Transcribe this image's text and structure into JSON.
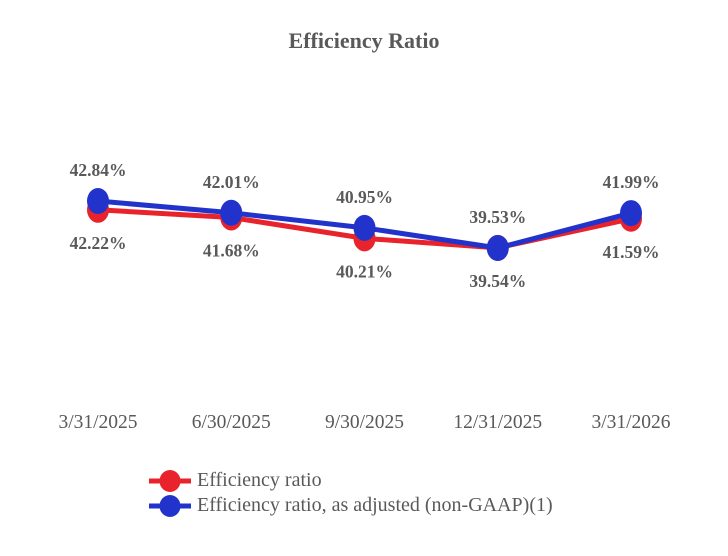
{
  "chart_data": {
    "type": "line",
    "title": "Efficiency Ratio",
    "categories": [
      "3/31/2025",
      "6/30/2025",
      "9/30/2025",
      "12/31/2025",
      "3/31/2026"
    ],
    "series": [
      {
        "name": "Efficiency ratio",
        "color": "#e9232b",
        "values": [
          42.22,
          41.68,
          40.21,
          39.54,
          41.59
        ],
        "labels": [
          "42.22%",
          "41.68%",
          "40.21%",
          "39.54%",
          "41.59%"
        ],
        "label_position": "below"
      },
      {
        "name": "Efficiency ratio, as adjusted (non-GAAP)(1)",
        "color": "#2233cb",
        "values": [
          42.84,
          42.01,
          40.95,
          39.53,
          41.99
        ],
        "labels": [
          "42.84%",
          "42.01%",
          "40.95%",
          "39.53%",
          "41.99%"
        ],
        "label_position": "above"
      }
    ],
    "xlabel": "",
    "ylabel": "",
    "ylim": [
      39.0,
      43.3
    ],
    "grid": false,
    "axes_visible": false,
    "legend_position": "bottom-left",
    "text_color": "#595959",
    "title_color": "#595959"
  }
}
